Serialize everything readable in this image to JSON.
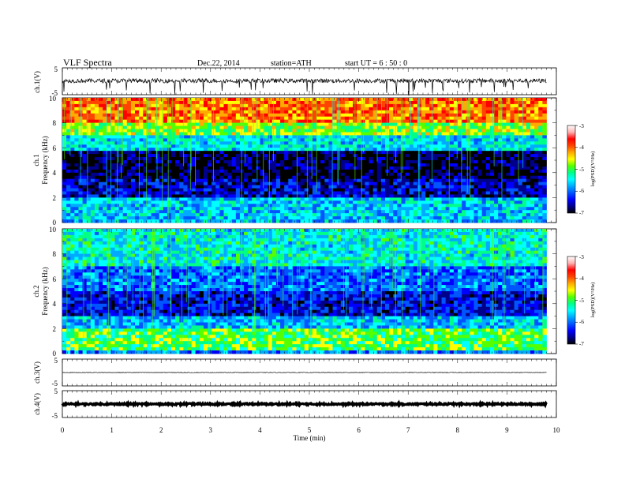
{
  "header": {
    "title": "VLF  Spectra",
    "date": "Dec.22, 2014",
    "station": "station=ATH",
    "start": "start  UT  =   6  : 50 : 0"
  },
  "colors": {
    "spectrum_scale": [
      "#000000",
      "#00008b",
      "#0000ff",
      "#0055ff",
      "#00aaff",
      "#00ffff",
      "#00ff88",
      "#55ff00",
      "#ffff00",
      "#ffaa00",
      "#ff4400",
      "#ff0000",
      "#ffb0b0",
      "#ffffff"
    ]
  },
  "chart_data": [
    {
      "type": "line",
      "panel": "ch1",
      "ylabel": "ch.1(V)",
      "ylim": [
        -5,
        5
      ],
      "yticks": [
        "5",
        "-5"
      ],
      "x_range": [
        0,
        9.8
      ],
      "baseline": 0.2,
      "noise_amplitude": 0.8
    },
    {
      "type": "heatmap",
      "panel": "ch1",
      "ylabel": [
        "ch.1",
        "Frequency  (kHz)"
      ],
      "ylim": [
        0,
        10
      ],
      "yticks": [
        "0",
        "2",
        "4",
        "6",
        "8",
        "10"
      ],
      "x_range": [
        0,
        9.8
      ],
      "colorbar": {
        "range": [
          -7,
          -3
        ],
        "ticks": [
          "-7",
          "-6",
          "-5",
          "-4",
          "-3"
        ],
        "label": "log(PSD)(V²/Hz)"
      },
      "bands": [
        {
          "f_from": 0,
          "f_to": 0.5,
          "log_psd": -5.6
        },
        {
          "f_from": 0.5,
          "f_to": 2.0,
          "log_psd": -5.5
        },
        {
          "f_from": 2.0,
          "f_to": 3.5,
          "log_psd": -6.5
        },
        {
          "f_from": 3.5,
          "f_to": 5.8,
          "log_psd": -6.9
        },
        {
          "f_from": 5.8,
          "f_to": 7.0,
          "log_psd": -5.4
        },
        {
          "f_from": 7.0,
          "f_to": 8.0,
          "log_psd": -4.6
        },
        {
          "f_from": 8.0,
          "f_to": 10.0,
          "log_psd": -3.8
        }
      ]
    },
    {
      "type": "heatmap",
      "panel": "ch2",
      "ylabel": [
        "ch.2",
        "Frequency  (kHz)"
      ],
      "ylim": [
        0,
        10
      ],
      "yticks": [
        "0",
        "2",
        "4",
        "6",
        "8",
        "10"
      ],
      "x_range": [
        0,
        9.8
      ],
      "colorbar": {
        "range": [
          -7,
          -3
        ],
        "ticks": [
          "-7",
          "-6",
          "-5",
          "-4",
          "-3"
        ],
        "label": "log(PSD)(V²/Hz)"
      },
      "bands": [
        {
          "f_from": 0,
          "f_to": 0.3,
          "log_psd": -5.8
        },
        {
          "f_from": 0.3,
          "f_to": 2.0,
          "log_psd": -4.8
        },
        {
          "f_from": 2.0,
          "f_to": 3.0,
          "log_psd": -5.6
        },
        {
          "f_from": 3.0,
          "f_to": 5.0,
          "log_psd": -6.4
        },
        {
          "f_from": 5.0,
          "f_to": 7.0,
          "log_psd": -5.9
        },
        {
          "f_from": 7.0,
          "f_to": 10.0,
          "log_psd": -5.3
        }
      ]
    },
    {
      "type": "line",
      "panel": "ch3",
      "ylabel": "ch.3(V)",
      "ylim": [
        -5,
        5
      ],
      "yticks": [
        "5",
        "-5"
      ],
      "x_range": [
        0,
        9.8
      ],
      "baseline": 0.0,
      "noise_amplitude": 0.1
    },
    {
      "type": "line",
      "panel": "ch4",
      "ylabel": "ch.4(V)",
      "ylim": [
        -5,
        5
      ],
      "yticks": [
        "5",
        "-5"
      ],
      "x_range": [
        0,
        9.8
      ],
      "baseline": 0.0,
      "noise_amplitude": 0.3
    }
  ],
  "xaxis": {
    "label": "Time  (min)",
    "xlim": [
      0,
      10
    ],
    "ticks": [
      "0",
      "1",
      "2",
      "3",
      "4",
      "5",
      "6",
      "7",
      "8",
      "9",
      "10"
    ]
  }
}
